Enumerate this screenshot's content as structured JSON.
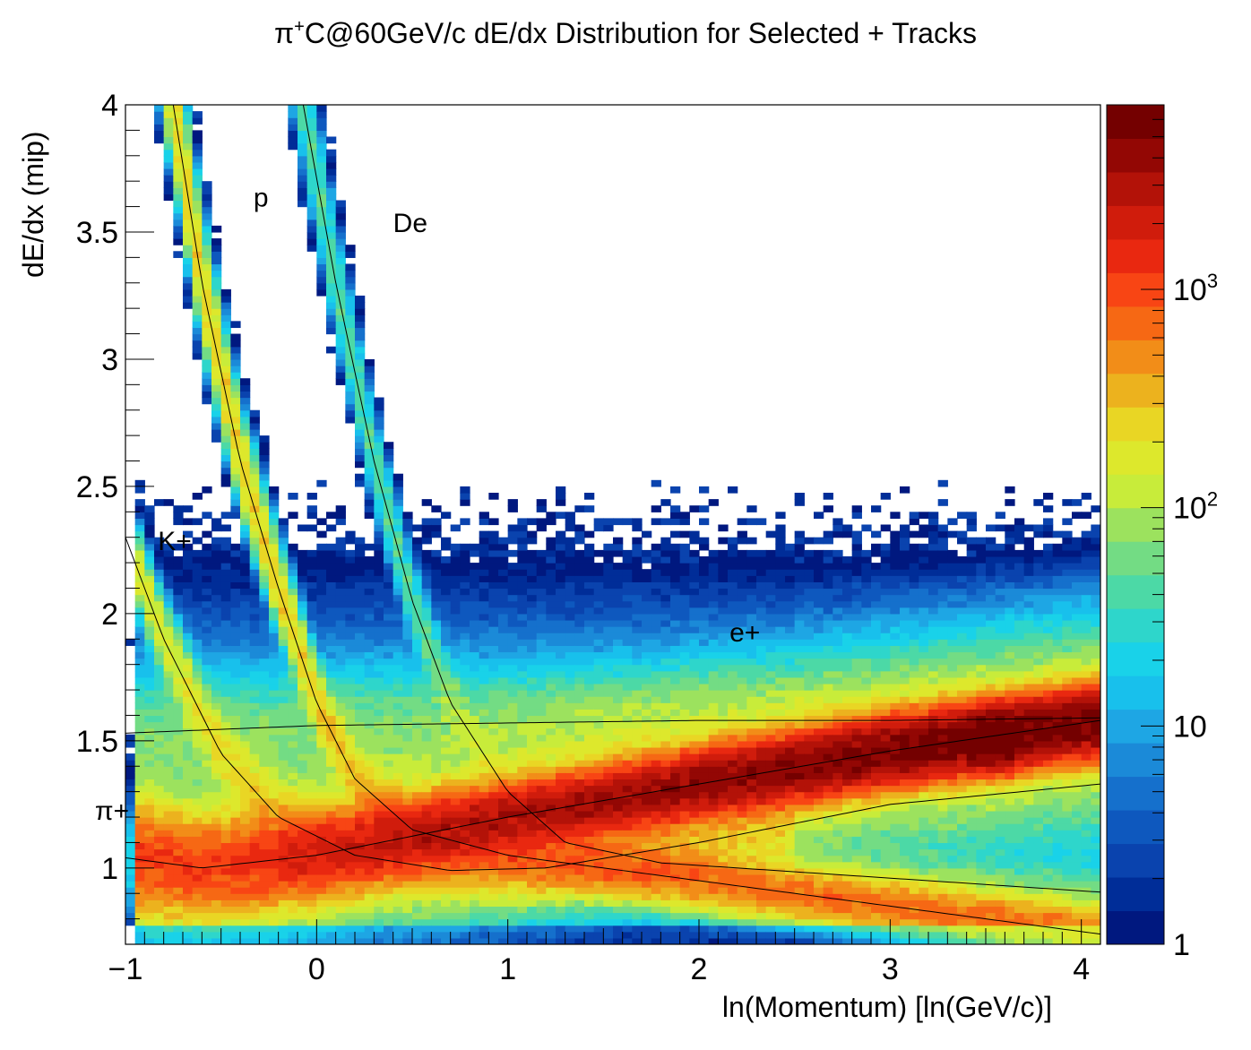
{
  "chart_data": {
    "type": "heatmap",
    "title": "π⁺C@60GeV/c dE/dx Distribution for Selected + Tracks",
    "title_parts": {
      "prefix": "π",
      "sup": "+",
      "rest": "C@60GeV/c dE/dx Distribution for Selected + Tracks"
    },
    "xlabel": "ln(Momentum) [ln(GeV/c)]",
    "ylabel": "dE/dx (mip)",
    "xlim": [
      -1,
      4.1
    ],
    "ylim": [
      0.7,
      4.0
    ],
    "x_ticks": [
      -1,
      0,
      1,
      2,
      3,
      4
    ],
    "x_tick_labels": [
      "−1",
      "0",
      "1",
      "2",
      "3",
      "4"
    ],
    "y_ticks": [
      1,
      1.5,
      2,
      2.5,
      3,
      3.5,
      4
    ],
    "y_tick_labels": [
      "1",
      "1.5",
      "2",
      "2.5",
      "3",
      "3.5",
      "4"
    ],
    "colorbar": {
      "scale": "log",
      "range": [
        1,
        7000
      ],
      "ticks": [
        {
          "value": 1,
          "label": "1"
        },
        {
          "value": 10,
          "label": "10"
        },
        {
          "value": 100,
          "base": "10",
          "exp": "2"
        },
        {
          "value": 1000,
          "base": "10",
          "exp": "3"
        }
      ],
      "palette": [
        "#00187f",
        "#002d98",
        "#0a43ae",
        "#0e58be",
        "#1570cc",
        "#1b8ad8",
        "#1ea6e4",
        "#18c0ec",
        "#19d2e9",
        "#2ed6cb",
        "#4cd9a6",
        "#73dc84",
        "#9ce25e",
        "#c8ec3a",
        "#dde82c",
        "#e9d624",
        "#ecb21e",
        "#f28d18",
        "#f66814",
        "#f84514",
        "#e92810",
        "#d01c0c",
        "#b31208",
        "#930704",
        "#740000"
      ]
    },
    "bands": [
      {
        "name": "p",
        "label_at": [
          -0.33,
          3.6
        ],
        "dE_dx_by_lnp": [
          [
            -0.75,
            4.0
          ],
          [
            -0.6,
            3.3
          ],
          [
            -0.4,
            2.6
          ],
          [
            -0.2,
            2.1
          ],
          [
            0,
            1.65
          ],
          [
            0.2,
            1.35
          ],
          [
            0.5,
            1.15
          ],
          [
            1.0,
            1.05
          ],
          [
            1.5,
            1.0
          ]
        ]
      },
      {
        "name": "De",
        "label_at": [
          0.4,
          3.5
        ],
        "dE_dx_by_lnp": [
          [
            -0.07,
            4.0
          ],
          [
            0.1,
            3.3
          ],
          [
            0.3,
            2.6
          ],
          [
            0.5,
            2.05
          ],
          [
            0.7,
            1.65
          ],
          [
            1.0,
            1.3
          ],
          [
            1.3,
            1.1
          ],
          [
            1.8,
            1.02
          ],
          [
            2.2,
            1.0
          ]
        ]
      },
      {
        "name": "K+",
        "label_at": [
          -0.83,
          2.25
        ],
        "dE_dx_by_lnp": [
          [
            -1.0,
            2.3
          ],
          [
            -0.8,
            1.9
          ],
          [
            -0.5,
            1.45
          ],
          [
            -0.2,
            1.2
          ],
          [
            0.2,
            1.05
          ],
          [
            0.7,
            0.99
          ],
          [
            1.2,
            1.0
          ],
          [
            2.0,
            1.1
          ],
          [
            3.0,
            1.25
          ],
          [
            4.1,
            1.33
          ]
        ]
      },
      {
        "name": "π+",
        "label_at": [
          -1.16,
          1.19
        ],
        "dE_dx_by_lnp": [
          [
            -1.0,
            1.04
          ],
          [
            -0.6,
            1.0
          ],
          [
            0.0,
            1.05
          ],
          [
            1.0,
            1.2
          ],
          [
            2.0,
            1.33
          ],
          [
            3.0,
            1.46
          ],
          [
            4.1,
            1.58
          ]
        ]
      },
      {
        "name": "e+",
        "label_at": [
          2.16,
          1.89
        ],
        "dE_dx_by_lnp": [
          [
            -1.0,
            1.53
          ],
          [
            0.0,
            1.56
          ],
          [
            1.0,
            1.57
          ],
          [
            2.0,
            1.58
          ],
          [
            3.0,
            1.58
          ],
          [
            4.1,
            1.59
          ]
        ]
      }
    ],
    "density_peak": {
      "ln_p_range": [
        0.5,
        3.7
      ],
      "dE_dx": "≈1.05 → 1.5 (π+ band)",
      "max_count": 7000
    }
  }
}
